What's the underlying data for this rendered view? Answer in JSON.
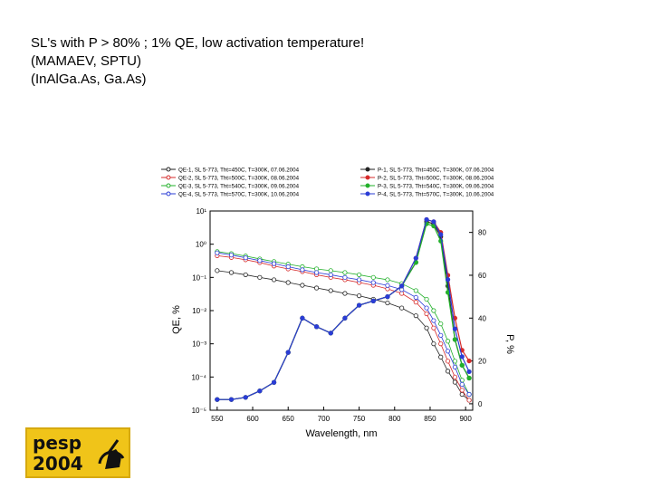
{
  "heading": {
    "line1": "SL's with P > 80% ; 1% QE, low activation temperature!",
    "line2": "(MAMAEV, SPTU)",
    "line3": "(InAlGa.As, Ga.As)"
  },
  "logo": {
    "line1": "pesp",
    "line2": "2004",
    "background": "#f0c419"
  },
  "chart_data": {
    "type": "line",
    "xlabel": "Wavelength, nm",
    "ylabel_left": "QE, %",
    "ylabel_right": "P, %",
    "xlim": [
      540,
      910
    ],
    "xticks": [
      550,
      600,
      650,
      700,
      750,
      800,
      850,
      900
    ],
    "ylim_left_log10": [
      -5,
      1
    ],
    "yticks_left": [
      {
        "exp": 1,
        "label": "10¹"
      },
      {
        "exp": 0,
        "label": "10⁰"
      },
      {
        "exp": -1,
        "label": "10⁻¹"
      },
      {
        "exp": -2,
        "label": "10⁻²"
      },
      {
        "exp": -3,
        "label": "10⁻³"
      },
      {
        "exp": -4,
        "label": "10⁻⁴"
      },
      {
        "exp": -5,
        "label": "10⁻⁵"
      }
    ],
    "ylim_right": [
      -3,
      90
    ],
    "yticks_right": [
      0,
      20,
      40,
      60,
      80
    ],
    "x": [
      550,
      570,
      590,
      610,
      630,
      650,
      670,
      690,
      710,
      730,
      750,
      770,
      790,
      810,
      830,
      845,
      855,
      865,
      875,
      885,
      895,
      905
    ],
    "qe_series": [
      {
        "name": "QE-1, SL 5-773, Tht=450C, T=300K, 07.06.2004",
        "color": "#222222",
        "values": [
          0.16,
          0.14,
          0.12,
          0.1,
          0.085,
          0.07,
          0.058,
          0.048,
          0.04,
          0.033,
          0.028,
          0.022,
          0.017,
          0.012,
          0.007,
          0.003,
          0.001,
          0.0004,
          0.00015,
          7e-05,
          3e-05,
          2e-05
        ]
      },
      {
        "name": "QE-2, SL 5-773, Tht=500C, T=300K, 08.06.2004",
        "color": "#d62a2a",
        "values": [
          0.45,
          0.4,
          0.34,
          0.28,
          0.22,
          0.18,
          0.15,
          0.12,
          0.1,
          0.085,
          0.07,
          0.058,
          0.045,
          0.033,
          0.018,
          0.008,
          0.003,
          0.001,
          0.0003,
          0.0001,
          4e-05,
          2e-05
        ]
      },
      {
        "name": "QE-3, SL 5-773, Tht=540C, T=300K, 09.06.2004",
        "color": "#22b02a",
        "values": [
          0.6,
          0.52,
          0.44,
          0.36,
          0.3,
          0.25,
          0.21,
          0.18,
          0.16,
          0.14,
          0.12,
          0.1,
          0.085,
          0.065,
          0.04,
          0.022,
          0.01,
          0.004,
          0.0012,
          0.0003,
          8e-05,
          3e-05
        ]
      },
      {
        "name": "QE-4, SL 5-773, Tht=570C, T=300K, 10.06.2004",
        "color": "#2a3cd6",
        "values": [
          0.55,
          0.47,
          0.39,
          0.32,
          0.26,
          0.21,
          0.17,
          0.14,
          0.12,
          0.1,
          0.085,
          0.07,
          0.057,
          0.043,
          0.025,
          0.012,
          0.005,
          0.0018,
          0.0006,
          0.0002,
          6e-05,
          3e-05
        ]
      }
    ],
    "p_series": [
      {
        "name": "P-1, SL 5-773, Tht=450C, T=300K, 07.06.2004",
        "color": "#222222",
        "values": [
          2,
          2,
          3,
          6,
          10,
          24,
          40,
          36,
          33,
          40,
          46,
          48,
          50,
          55,
          66,
          85,
          84,
          78,
          55,
          30,
          18,
          12
        ]
      },
      {
        "name": "P-2, SL 5-773, Tht=500C, T=300K, 08.06.2004",
        "color": "#d62a2a",
        "values": [
          2,
          2,
          3,
          6,
          10,
          24,
          40,
          36,
          33,
          40,
          46,
          48,
          50,
          55,
          68,
          86,
          85,
          80,
          60,
          40,
          25,
          20
        ]
      },
      {
        "name": "P-3, SL 5-773, Tht=540C, T=300K, 09.06.2004",
        "color": "#22b02a",
        "values": [
          2,
          2,
          3,
          6,
          10,
          24,
          40,
          36,
          33,
          40,
          46,
          48,
          50,
          55,
          66,
          84,
          83,
          76,
          52,
          30,
          18,
          12
        ]
      },
      {
        "name": "P-4, SL 5-773, Tht=570C, T=300K, 10.06.2004",
        "color": "#2a3cd6",
        "values": [
          2,
          2,
          3,
          6,
          10,
          24,
          40,
          36,
          33,
          40,
          46,
          48,
          50,
          55,
          68,
          86,
          85,
          79,
          58,
          35,
          22,
          15
        ]
      }
    ]
  }
}
